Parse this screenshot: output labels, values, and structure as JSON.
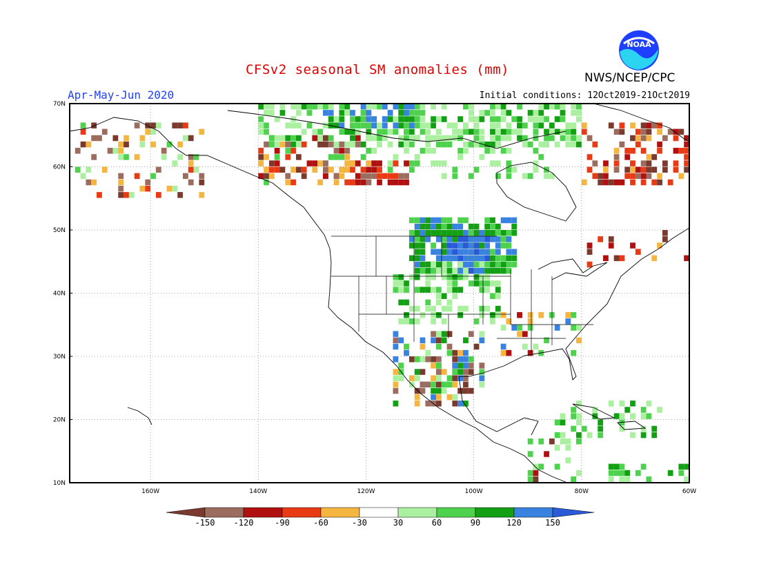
{
  "title": "CFSv2 seasonal SM anomalies (mm)",
  "period": "Apr-May-Jun 2020",
  "initial_conditions": "Initial conditions: 12Oct2019-21Oct2019",
  "agency": "NWS/NCEP/CPC",
  "logo_text": "NOAA",
  "lat_labels": [
    "70N",
    "60N",
    "50N",
    "40N",
    "30N",
    "20N",
    "10N"
  ],
  "lon_labels": [
    "160W",
    "140W",
    "120W",
    "100W",
    "80W",
    "60W"
  ],
  "colorbar": {
    "ticks": [
      "-150",
      "-120",
      "-90",
      "-60",
      "-30",
      "30",
      "60",
      "90",
      "120",
      "150"
    ],
    "colors": [
      "#7b3a2e",
      "#9c6d5e",
      "#b01010",
      "#e83a14",
      "#f5b641",
      "#ffffff",
      "#aaf0a0",
      "#4ed24e",
      "#14a014",
      "#3a82e0",
      "#2a5ad8"
    ]
  },
  "map_extent": {
    "lon_min": -175,
    "lon_max": -60,
    "lat_min": 10,
    "lat_max": 70
  }
}
